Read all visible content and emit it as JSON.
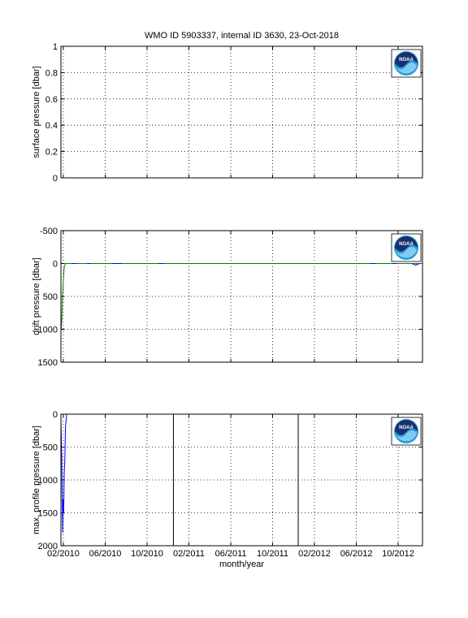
{
  "chart_data": [
    {
      "type": "line",
      "title": "WMO ID 5903337, internal ID 3630, 23-Oct-2018",
      "ylabel": "surface pressure [dbar]",
      "logo": "NOAA",
      "xlim": [
        2010.064,
        2012.944
      ],
      "xticks": [
        2010.083,
        2010.417,
        2010.75,
        2011.083,
        2011.417,
        2011.75,
        2012.083,
        2012.417,
        2012.75
      ],
      "ylim": [
        0,
        1
      ],
      "yticks": [
        0,
        0.2,
        0.4,
        0.6,
        0.8,
        1
      ],
      "y_reversed": false,
      "grid": true,
      "series": []
    },
    {
      "type": "line",
      "ylabel": "drift pressure [dbar]",
      "logo": "NOAA",
      "xlim": [
        2010.064,
        2012.944
      ],
      "xticks": [
        2010.083,
        2010.417,
        2010.75,
        2011.083,
        2011.417,
        2011.75,
        2012.083,
        2012.417,
        2012.75
      ],
      "ylim": [
        -500,
        1500
      ],
      "yticks": [
        -500,
        0,
        500,
        1000,
        1500
      ],
      "y_reversed": true,
      "grid": true,
      "series": [
        {
          "color": "#008000",
          "x": [
            2010.066,
            2010.072,
            2010.078,
            2010.085,
            2010.09,
            2010.1,
            2010.2,
            2012.94
          ],
          "values": [
            1000,
            800,
            450,
            200,
            60,
            0,
            0,
            0
          ]
        },
        {
          "color": "#0000ff",
          "x": [
            2010.15,
            2010.19,
            2010.2,
            2010.27,
            2010.3,
            2010.31,
            2010.47,
            2010.55,
            2010.56,
            2010.84,
            2010.88,
            2010.89,
            2012.53,
            2012.57,
            2012.58,
            2012.7,
            2012.74,
            2012.75,
            2012.86,
            2012.89,
            2012.92
          ],
          "values": [
            0,
            0,
            null,
            0,
            0,
            null,
            0,
            0,
            null,
            0,
            0,
            null,
            0,
            0,
            null,
            0,
            0,
            null,
            0,
            25,
            0
          ]
        }
      ]
    },
    {
      "type": "line",
      "ylabel": "max. profile pressure [dbar]",
      "xlabel": "month/year",
      "logo": "NOAA",
      "xlim": [
        2010.064,
        2012.944
      ],
      "xticks": [
        {
          "value": 2010.083,
          "label": "02/2010"
        },
        {
          "value": 2010.417,
          "label": "06/2010"
        },
        {
          "value": 2010.75,
          "label": "10/2010"
        },
        {
          "value": 2011.083,
          "label": "02/2011"
        },
        {
          "value": 2011.417,
          "label": "06/2011"
        },
        {
          "value": 2011.75,
          "label": "10/2011"
        },
        {
          "value": 2012.083,
          "label": "02/2012"
        },
        {
          "value": 2012.417,
          "label": "06/2012"
        },
        {
          "value": 2012.75,
          "label": "10/2012"
        }
      ],
      "ylim": [
        0,
        2000
      ],
      "yticks": [
        0,
        500,
        1000,
        1500,
        2000
      ],
      "y_reversed": true,
      "grid": true,
      "vlines": [
        2010.96,
        2011.954
      ],
      "series": [
        {
          "color": "#0000ff",
          "x": [
            2010.064,
            2010.07,
            2010.074,
            2010.078,
            2010.082,
            2010.086,
            2010.09,
            2010.095,
            2010.1,
            2010.11,
            2012.94
          ],
          "values": [
            100,
            600,
            1200,
            1800,
            1300,
            1500,
            900,
            700,
            200,
            0,
            0
          ]
        }
      ]
    }
  ]
}
